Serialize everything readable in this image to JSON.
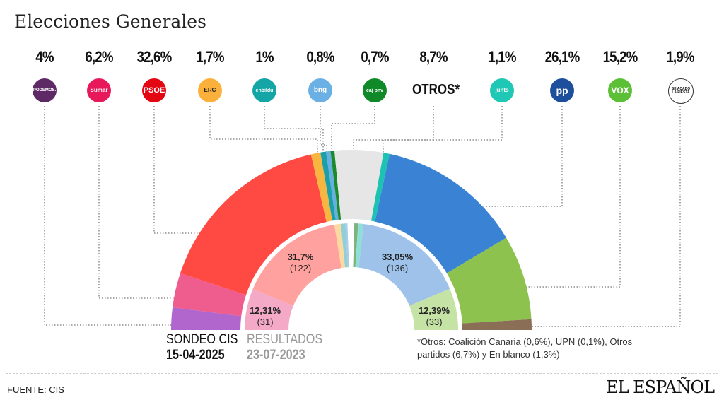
{
  "title": "Elecciones Generales",
  "chart_data": {
    "type": "pie",
    "subtype": "semicircle-parliament",
    "title": "Elecciones Generales",
    "outer": {
      "label": "SONDEO CIS",
      "date": "15-04-2025",
      "series": [
        {
          "party": "PODEMOS",
          "value": 4,
          "label": "4%",
          "color": "#b066cc",
          "logo_color": "#5e2a66"
        },
        {
          "party": "Sumar",
          "value": 6.2,
          "label": "6,2%",
          "color": "#ef5c8e",
          "logo_color": "#e7195a"
        },
        {
          "party": "PSOE",
          "value": 32.6,
          "label": "32,6%",
          "color": "#ff4a44",
          "logo_color": "#e30613"
        },
        {
          "party": "ERC",
          "value": 1.7,
          "label": "1,7%",
          "color": "#f8b640",
          "logo_color": "#fbb03b"
        },
        {
          "party": "ehbildu",
          "value": 1,
          "label": "1%",
          "color": "#1aa0a8",
          "logo_color": "#14a6a6"
        },
        {
          "party": "bng",
          "value": 0.8,
          "label": "0,8%",
          "color": "#68aee0",
          "logo_color": "#6bb0e4"
        },
        {
          "party": "eaj pnv",
          "value": 0.7,
          "label": "0,7%",
          "color": "#1a8a2a",
          "logo_color": "#108a28"
        },
        {
          "party": "OTROS*",
          "value": 8.7,
          "label": "8,7%",
          "color": "#e6e6e6",
          "logo_color": "#ffffff"
        },
        {
          "party": "junts",
          "value": 1.1,
          "label": "1,1%",
          "color": "#1cc3b2",
          "logo_color": "#1fc8b4"
        },
        {
          "party": "PP",
          "value": 26.1,
          "label": "26,1%",
          "color": "#3a82d4",
          "logo_color": "#1d4f9c"
        },
        {
          "party": "VOX",
          "value": 15.2,
          "label": "15,2%",
          "color": "#8dc24e",
          "logo_color": "#5bc036"
        },
        {
          "party": "SE ACABÓ LA FIESTA",
          "value": 1.9,
          "label": "1,9%",
          "color": "#8a6e55",
          "logo_color": "#ffffff"
        }
      ]
    },
    "inner": {
      "label": "RESULTADOS",
      "date": "23-07-2023",
      "series": [
        {
          "party": "Sumar",
          "value": 12.31,
          "label": "12,31%",
          "seats": "(31)",
          "color": "#f4a9c6"
        },
        {
          "party": "PSOE",
          "value": 31.7,
          "label": "31,7%",
          "seats": "(122)",
          "color": "#ffa19e"
        },
        {
          "party": "ERC",
          "value": 1.89,
          "color": "#fbd9a0"
        },
        {
          "party": "ehbildu",
          "value": 1.36,
          "color": "#90cfd6"
        },
        {
          "party": "bng",
          "value": 0.62,
          "color": "#a7cdea"
        },
        {
          "party": "otros",
          "value": 2,
          "color": "#ffffff"
        },
        {
          "party": "eaj pnv",
          "value": 1.12,
          "color": "#7eb27e"
        },
        {
          "party": "junts",
          "value": 1.6,
          "color": "#8ee0d6"
        },
        {
          "party": "PP",
          "value": 33.05,
          "label": "33,05%",
          "seats": "(136)",
          "color": "#9ec2ea"
        },
        {
          "party": "VOX",
          "value": 12.39,
          "label": "12,39%",
          "seats": "(33)",
          "color": "#c6e3a6"
        }
      ]
    }
  },
  "logos": {
    "podemos": "PODEMOS.",
    "sumar": "Sumar",
    "psoe": "PSOE",
    "erc": "ERC",
    "bildu": "ehbildu",
    "bng": "bng",
    "pnv": "eaj pnv",
    "otros": "OTROS*",
    "junts": "junts",
    "pp": "pp",
    "vox": "VOX",
    "salf": "SE ACABÓ LA FIESTA"
  },
  "note": "*Otros: Coalición Canaria (0,6%), UPN (0,1%), Otros partidos (6,7%) y En blanco (1,3%)",
  "source": "FUENTE: CIS",
  "brand": "EL ESPAÑOL"
}
